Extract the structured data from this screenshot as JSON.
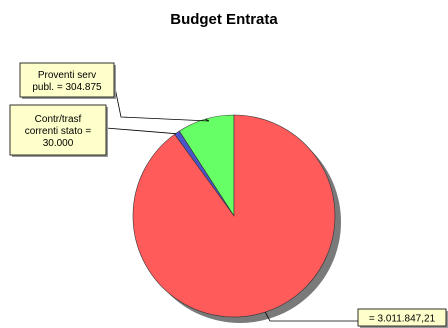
{
  "chart_data": {
    "type": "pie",
    "title": "Budget Entrata",
    "slices": [
      {
        "label_lines": [
          "Proventi serv",
          "publ. = 304.875"
        ],
        "value": 304875,
        "color": "#66ff66"
      },
      {
        "label_lines": [
          "Contr/trasf",
          "correnti  stato =",
          "30.000"
        ],
        "value": 30000,
        "color": "#4a55cc"
      },
      {
        "label_lines": [
          "= 3.011.847,21"
        ],
        "value": 3011847.21,
        "color": "#ff5b5b"
      }
    ],
    "label_box_color": "#ffffcc",
    "shadow_color": "#7a7a7a",
    "legend": "none"
  }
}
